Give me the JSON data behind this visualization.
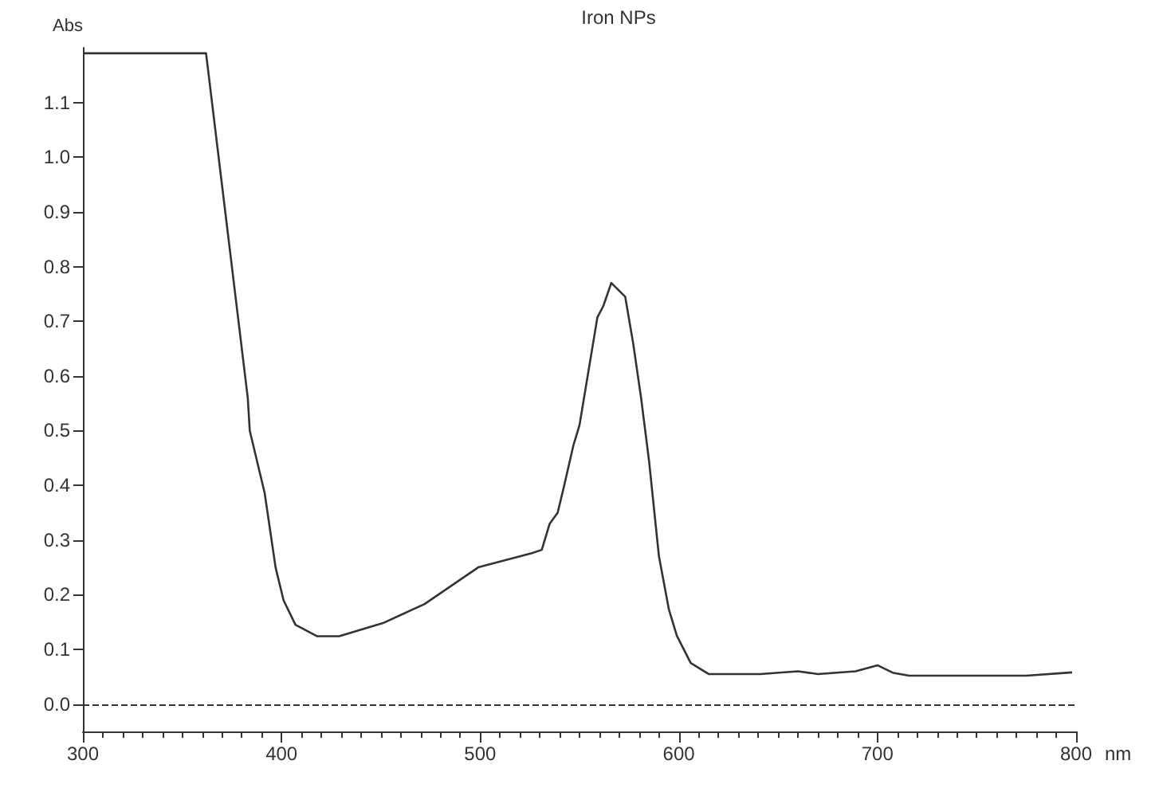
{
  "chart_data": {
    "type": "line",
    "title": "Iron NPs",
    "xlabel": "nm",
    "ylabel": "Abs",
    "xlim": [
      300,
      800
    ],
    "xticks": [
      300,
      400,
      500,
      600,
      700,
      800
    ],
    "ylim": [
      -0.05,
      1.2
    ],
    "yticks": [
      {
        "value": 0,
        "label": "0.0"
      },
      0.1,
      0.2,
      0.3,
      0.4,
      0.5,
      0.6,
      0.7,
      0.8,
      0.9,
      {
        "value": 1,
        "label": "1.0"
      },
      1.1
    ],
    "grid": false,
    "marker": "none",
    "line_style": "solid",
    "ref_lines": [
      {
        "axis": "y",
        "value": 0,
        "line_style": "dashed",
        "color": "#333333"
      }
    ],
    "series": [
      {
        "color": "#333333",
        "x": [
          300,
          362,
          383,
          384,
          391.5,
          397,
          401,
          407,
          418,
          429,
          451,
          472,
          499,
          526,
          531,
          535,
          539,
          542,
          547,
          550,
          559,
          562,
          566,
          573,
          577,
          581,
          585,
          590,
          595,
          599,
          606,
          615,
          641,
          660,
          670,
          689,
          700,
          708,
          716,
          775,
          798
        ],
        "values": [
          1.19,
          1.19,
          0.56,
          0.5,
          0.386,
          0.25,
          0.19,
          0.145,
          0.124,
          0.124,
          0.148,
          0.183,
          0.25,
          0.276,
          0.282,
          0.33,
          0.35,
          0.395,
          0.474,
          0.51,
          0.707,
          0.728,
          0.77,
          0.745,
          0.66,
          0.56,
          0.445,
          0.27,
          0.173,
          0.125,
          0.075,
          0.055,
          0.055,
          0.06,
          0.055,
          0.06,
          0.071,
          0.057,
          0.052,
          0.052,
          0.058
        ]
      }
    ]
  }
}
